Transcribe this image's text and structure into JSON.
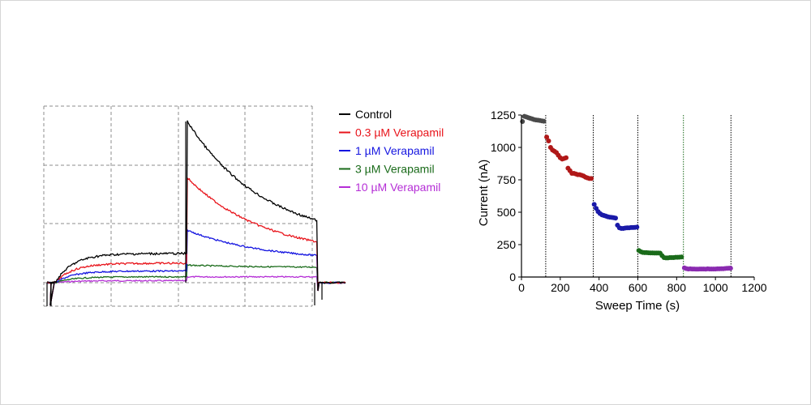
{
  "chart_data": [
    {
      "type": "line",
      "title": "",
      "xlabel": "",
      "ylabel": "",
      "grid": true,
      "legend_position": "right",
      "legend": [
        {
          "name": "Control",
          "color": "#000000"
        },
        {
          "name": "0.3 µM Verapamil",
          "color": "#e8141b"
        },
        {
          "name": "1 µM Verapamil",
          "color": "#1515e0"
        },
        {
          "name": "3 µM Verapamil",
          "color": "#1a6b1a"
        },
        {
          "name": "10 µM Verapamil",
          "color": "#b52ed6"
        }
      ],
      "series": [
        {
          "name": "Control",
          "color": "#000000",
          "step1_level": 0.15,
          "peak": 0.83,
          "tail_end": 0.32
        },
        {
          "name": "0.3 µM Verapamil",
          "color": "#e8141b",
          "step1_level": 0.1,
          "peak": 0.54,
          "tail_end": 0.21
        },
        {
          "name": "1 µM Verapamil",
          "color": "#1515e0",
          "step1_level": 0.06,
          "peak": 0.27,
          "tail_end": 0.14
        },
        {
          "name": "3 µM Verapamil",
          "color": "#1a6b1a",
          "step1_level": 0.03,
          "peak": 0.09,
          "tail_end": 0.08
        },
        {
          "name": "10 µM Verapamil",
          "color": "#b52ed6",
          "step1_level": 0.01,
          "peak": 0.03,
          "tail_end": 0.03
        }
      ]
    },
    {
      "type": "scatter",
      "title": "",
      "xlabel": "Sweep Time (s)",
      "ylabel": "Current (nA)",
      "xlim": [
        0,
        1200
      ],
      "ylim": [
        0,
        1250
      ],
      "x_ticks": [
        0,
        200,
        400,
        600,
        800,
        1000,
        1200
      ],
      "y_ticks": [
        0,
        250,
        500,
        750,
        1000,
        1250
      ],
      "vlines": [
        {
          "x": 125,
          "color": "#000000"
        },
        {
          "x": 370,
          "color": "#000000"
        },
        {
          "x": 600,
          "color": "#000000"
        },
        {
          "x": 835,
          "color": "#1a6b1a"
        },
        {
          "x": 1080,
          "color": "#000000"
        }
      ],
      "series": [
        {
          "name": "Control",
          "color": "#4a4a4a",
          "x": [
            5,
            15,
            25,
            35,
            45,
            55,
            65,
            75,
            85,
            95,
            105,
            115
          ],
          "y": [
            1200,
            1240,
            1235,
            1230,
            1225,
            1220,
            1215,
            1212,
            1210,
            1208,
            1205,
            1202
          ]
        },
        {
          "name": "0.3 µM Verapamil",
          "color": "#b01818",
          "x": [
            130,
            140,
            150,
            160,
            170,
            180,
            190,
            200,
            210,
            220,
            230,
            240,
            250,
            260,
            270,
            280,
            290,
            300,
            310,
            320,
            330,
            340,
            350,
            360
          ],
          "y": [
            1080,
            1050,
            1000,
            980,
            970,
            960,
            940,
            920,
            910,
            915,
            920,
            840,
            820,
            800,
            800,
            795,
            790,
            790,
            785,
            780,
            770,
            765,
            760,
            760
          ]
        },
        {
          "name": "1 µM Verapamil",
          "color": "#1a1aa8",
          "x": [
            375,
            385,
            395,
            405,
            415,
            425,
            435,
            445,
            455,
            465,
            475,
            485,
            495,
            505,
            515,
            525,
            535,
            545,
            555,
            565,
            575,
            585,
            595
          ],
          "y": [
            560,
            530,
            505,
            490,
            480,
            475,
            470,
            465,
            462,
            460,
            458,
            455,
            400,
            380,
            375,
            375,
            378,
            380,
            380,
            382,
            382,
            383,
            385
          ]
        },
        {
          "name": "3 µM Verapamil",
          "color": "#1a6b1a",
          "x": [
            605,
            615,
            625,
            635,
            645,
            655,
            665,
            675,
            685,
            695,
            705,
            715,
            725,
            735,
            745,
            755,
            765,
            775,
            785,
            795,
            805,
            815,
            825
          ],
          "y": [
            205,
            195,
            190,
            188,
            188,
            187,
            186,
            186,
            185,
            185,
            185,
            184,
            165,
            150,
            148,
            148,
            150,
            150,
            150,
            152,
            152,
            153,
            155
          ]
        },
        {
          "name": "10 µM Verapamil",
          "color": "#8a2bb0",
          "x": [
            840,
            850,
            860,
            870,
            880,
            890,
            900,
            910,
            920,
            930,
            940,
            950,
            960,
            970,
            980,
            990,
            1000,
            1010,
            1020,
            1030,
            1040,
            1050,
            1060,
            1070,
            1078
          ],
          "y": [
            70,
            65,
            62,
            63,
            62,
            62,
            61,
            61,
            62,
            62,
            62,
            61,
            63,
            62,
            62,
            62,
            62,
            63,
            63,
            64,
            64,
            66,
            67,
            68,
            68
          ]
        }
      ]
    }
  ]
}
